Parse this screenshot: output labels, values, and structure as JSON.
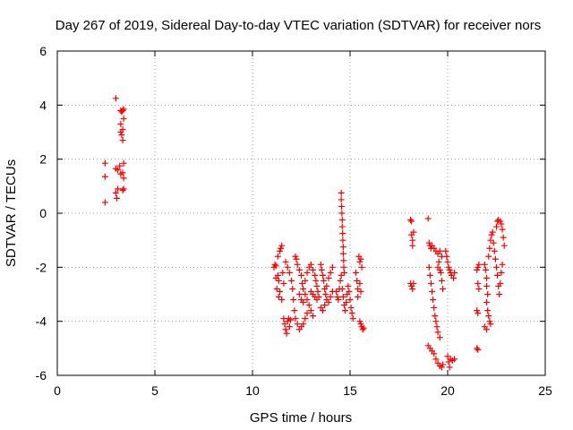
{
  "chart_data": {
    "type": "scatter",
    "title": "Day 267 of 2019, Sidereal Day-to-day VTEC variation (SDTVAR) for receiver nors",
    "xlabel": "GPS time / hours",
    "ylabel": "SDTVAR / TECUs",
    "xlim": [
      0,
      25
    ],
    "ylim": [
      -6,
      6
    ],
    "xticks": [
      "0",
      "5",
      "10",
      "15",
      "20",
      "25"
    ],
    "yticks": [
      "-6",
      "-4",
      "-2",
      "0",
      "2",
      "4",
      "6"
    ],
    "grid": true,
    "marker": "plus",
    "color": "#ff0000",
    "series": [
      {
        "name": "SDTVAR",
        "points": [
          [
            2.45,
            1.85
          ],
          [
            2.45,
            1.35
          ],
          [
            2.45,
            0.4
          ],
          [
            3.0,
            4.25
          ],
          [
            3.0,
            1.65
          ],
          [
            3.0,
            0.75
          ],
          [
            3.05,
            0.55
          ],
          [
            3.1,
            0.9
          ],
          [
            3.1,
            1.6
          ],
          [
            3.2,
            1.75
          ],
          [
            3.25,
            3.8
          ],
          [
            3.25,
            3.3
          ],
          [
            3.25,
            3.0
          ],
          [
            3.25,
            1.45
          ],
          [
            3.3,
            3.75
          ],
          [
            3.3,
            2.9
          ],
          [
            3.35,
            3.8
          ],
          [
            3.35,
            3.1
          ],
          [
            3.35,
            2.7
          ],
          [
            3.35,
            1.5
          ],
          [
            3.35,
            0.85
          ],
          [
            3.4,
            3.85
          ],
          [
            3.4,
            3.5
          ],
          [
            3.4,
            1.85
          ],
          [
            3.4,
            1.3
          ],
          [
            3.4,
            0.9
          ],
          [
            11.1,
            -2.0
          ],
          [
            11.15,
            -1.9
          ],
          [
            11.2,
            -2.4
          ],
          [
            11.2,
            -1.95
          ],
          [
            11.25,
            -2.8
          ],
          [
            11.3,
            -2.3
          ],
          [
            11.3,
            -1.6
          ],
          [
            11.35,
            -3.1
          ],
          [
            11.35,
            -2.5
          ],
          [
            11.4,
            -1.4
          ],
          [
            11.4,
            -2.9
          ],
          [
            11.45,
            -1.3
          ],
          [
            11.5,
            -1.2
          ],
          [
            11.5,
            -3.2
          ],
          [
            11.55,
            -2.2
          ],
          [
            11.6,
            -2.6
          ],
          [
            11.6,
            -3.9
          ],
          [
            11.65,
            -4.1
          ],
          [
            11.7,
            -4.3
          ],
          [
            11.75,
            -4.45
          ],
          [
            11.8,
            -4.0
          ],
          [
            11.85,
            -3.9
          ],
          [
            11.9,
            -4.2
          ],
          [
            11.95,
            -3.95
          ],
          [
            11.7,
            -1.8
          ],
          [
            11.8,
            -2.0
          ],
          [
            11.9,
            -2.2
          ],
          [
            12.0,
            -2.5
          ],
          [
            12.05,
            -2.8
          ],
          [
            12.1,
            -3.2
          ],
          [
            12.15,
            -3.6
          ],
          [
            12.2,
            -3.9
          ],
          [
            12.3,
            -4.1
          ],
          [
            12.4,
            -4.3
          ],
          [
            12.5,
            -4.2
          ],
          [
            12.6,
            -4.1
          ],
          [
            12.7,
            -3.9
          ],
          [
            12.8,
            -3.7
          ],
          [
            12.2,
            -1.6
          ],
          [
            12.25,
            -1.7
          ],
          [
            12.3,
            -1.9
          ],
          [
            12.4,
            -2.1
          ],
          [
            12.5,
            -2.3
          ],
          [
            12.55,
            -2.6
          ],
          [
            12.6,
            -2.8
          ],
          [
            12.7,
            -3.0
          ],
          [
            12.8,
            -3.2
          ],
          [
            12.9,
            -3.4
          ],
          [
            13.0,
            -3.6
          ],
          [
            13.1,
            -3.8
          ],
          [
            12.4,
            -3.0
          ],
          [
            12.5,
            -3.2
          ],
          [
            12.6,
            -3.3
          ],
          [
            12.7,
            -2.5
          ],
          [
            12.8,
            -2.2
          ],
          [
            12.9,
            -2.0
          ],
          [
            13.0,
            -1.9
          ],
          [
            13.1,
            -2.1
          ],
          [
            13.2,
            -2.3
          ],
          [
            13.25,
            -2.5
          ],
          [
            13.3,
            -2.7
          ],
          [
            13.35,
            -2.9
          ],
          [
            13.4,
            -3.1
          ],
          [
            13.0,
            -2.9
          ],
          [
            13.1,
            -3.0
          ],
          [
            13.2,
            -3.1
          ],
          [
            13.3,
            -3.2
          ],
          [
            13.5,
            -1.9
          ],
          [
            13.55,
            -2.1
          ],
          [
            13.6,
            -2.3
          ],
          [
            13.65,
            -2.5
          ],
          [
            13.7,
            -2.8
          ],
          [
            13.75,
            -3.0
          ],
          [
            13.8,
            -3.2
          ],
          [
            13.9,
            -3.3
          ],
          [
            14.0,
            -3.1
          ],
          [
            14.1,
            -2.9
          ],
          [
            13.5,
            -3.5
          ],
          [
            13.6,
            -3.6
          ],
          [
            13.7,
            -3.4
          ],
          [
            13.8,
            -2.7
          ],
          [
            13.9,
            -2.4
          ],
          [
            14.0,
            -2.2
          ],
          [
            14.1,
            -2.0
          ],
          [
            14.3,
            -2.9
          ],
          [
            14.35,
            -3.1
          ],
          [
            14.4,
            -3.2
          ],
          [
            14.45,
            -2.8
          ],
          [
            14.5,
            -2.5
          ],
          [
            14.55,
            -2.3
          ],
          [
            14.6,
            -2.8
          ],
          [
            14.65,
            -3.1
          ],
          [
            14.7,
            -3.4
          ],
          [
            14.75,
            -3.6
          ],
          [
            14.8,
            -3.3
          ],
          [
            14.85,
            -3.0
          ],
          [
            14.9,
            -2.7
          ],
          [
            14.95,
            -2.9
          ],
          [
            15.0,
            -3.2
          ],
          [
            15.05,
            -3.5
          ],
          [
            15.1,
            -3.7
          ],
          [
            15.15,
            -3.9
          ],
          [
            14.55,
            0.75
          ],
          [
            14.55,
            0.5
          ],
          [
            14.57,
            0.25
          ],
          [
            14.58,
            0.0
          ],
          [
            14.6,
            -0.25
          ],
          [
            14.6,
            -0.5
          ],
          [
            14.62,
            -0.75
          ],
          [
            14.63,
            -1.0
          ],
          [
            14.65,
            -1.25
          ],
          [
            14.65,
            -1.5
          ],
          [
            14.67,
            -1.75
          ],
          [
            14.68,
            -2.0
          ],
          [
            14.7,
            -2.2
          ],
          [
            15.3,
            -2.2
          ],
          [
            15.35,
            -2.5
          ],
          [
            15.4,
            -2.8
          ],
          [
            15.4,
            -3.1
          ],
          [
            15.45,
            -1.6
          ],
          [
            15.5,
            -1.8
          ],
          [
            15.5,
            -2.6
          ],
          [
            15.55,
            -2.9
          ],
          [
            15.55,
            -1.7
          ],
          [
            15.6,
            -2.0
          ],
          [
            15.5,
            -4.0
          ],
          [
            15.55,
            -4.1
          ],
          [
            15.6,
            -4.2
          ],
          [
            15.65,
            -4.3
          ],
          [
            15.7,
            -4.25
          ],
          [
            18.1,
            -0.25
          ],
          [
            18.15,
            -0.3
          ],
          [
            18.15,
            -0.8
          ],
          [
            18.2,
            -1.0
          ],
          [
            18.2,
            -1.2
          ],
          [
            18.25,
            -0.7
          ],
          [
            18.1,
            -2.6
          ],
          [
            18.15,
            -2.7
          ],
          [
            18.2,
            -2.8
          ],
          [
            18.25,
            -2.6
          ],
          [
            19.0,
            -0.2
          ],
          [
            19.05,
            -1.1
          ],
          [
            19.1,
            -1.2
          ],
          [
            19.15,
            -1.3
          ],
          [
            19.2,
            -1.2
          ],
          [
            19.3,
            -1.3
          ],
          [
            19.4,
            -1.4
          ],
          [
            19.5,
            -1.5
          ],
          [
            19.6,
            -1.4
          ],
          [
            19.7,
            -1.6
          ],
          [
            19.05,
            -2.0
          ],
          [
            19.1,
            -2.3
          ],
          [
            19.15,
            -2.6
          ],
          [
            19.2,
            -2.9
          ],
          [
            19.25,
            -3.2
          ],
          [
            19.3,
            -3.5
          ],
          [
            19.35,
            -3.8
          ],
          [
            19.4,
            -4.0
          ],
          [
            19.45,
            -4.2
          ],
          [
            19.5,
            -4.4
          ],
          [
            19.6,
            -4.6
          ],
          [
            19.65,
            -2.2
          ],
          [
            19.7,
            -2.5
          ],
          [
            19.75,
            -2.8
          ],
          [
            19.5,
            -2.0
          ],
          [
            19.55,
            -1.8
          ],
          [
            19.6,
            -2.1
          ],
          [
            19.0,
            -4.9
          ],
          [
            19.1,
            -5.0
          ],
          [
            19.2,
            -5.1
          ],
          [
            19.3,
            -5.2
          ],
          [
            19.4,
            -5.4
          ],
          [
            19.5,
            -5.55
          ],
          [
            19.6,
            -5.65
          ],
          [
            19.7,
            -5.7
          ],
          [
            19.75,
            -5.6
          ],
          [
            20.0,
            -5.3
          ],
          [
            20.05,
            -5.5
          ],
          [
            20.1,
            -5.7
          ],
          [
            20.15,
            -5.4
          ],
          [
            20.25,
            -5.45
          ],
          [
            20.35,
            -5.4
          ],
          [
            19.9,
            -1.4
          ],
          [
            19.95,
            -1.6
          ],
          [
            20.0,
            -1.8
          ],
          [
            20.05,
            -2.0
          ],
          [
            20.1,
            -2.1
          ],
          [
            20.15,
            -2.2
          ],
          [
            20.2,
            -2.3
          ],
          [
            20.3,
            -2.4
          ],
          [
            20.35,
            -2.2
          ],
          [
            21.5,
            -2.1
          ],
          [
            21.55,
            -2.0
          ],
          [
            21.6,
            -1.9
          ],
          [
            21.55,
            -2.6
          ],
          [
            21.6,
            -2.8
          ],
          [
            21.5,
            -3.6
          ],
          [
            21.55,
            -3.7
          ],
          [
            21.5,
            -5.0
          ],
          [
            21.55,
            -5.05
          ],
          [
            21.9,
            -1.9
          ],
          [
            21.95,
            -2.1
          ],
          [
            22.0,
            -2.4
          ],
          [
            22.0,
            -2.7
          ],
          [
            22.05,
            -3.0
          ],
          [
            22.1,
            -1.6
          ],
          [
            22.15,
            -1.3
          ],
          [
            22.2,
            -1.0
          ],
          [
            22.25,
            -0.8
          ],
          [
            22.3,
            -0.7
          ],
          [
            22.35,
            -1.1
          ],
          [
            22.4,
            -1.4
          ],
          [
            22.45,
            -1.7
          ],
          [
            22.5,
            -2.0
          ],
          [
            22.55,
            -2.3
          ],
          [
            22.6,
            -2.7
          ],
          [
            22.65,
            -3.0
          ],
          [
            22.7,
            -2.6
          ],
          [
            22.75,
            -2.2
          ],
          [
            22.8,
            -1.9
          ],
          [
            22.5,
            -0.5
          ],
          [
            22.55,
            -0.3
          ],
          [
            22.6,
            -0.25
          ],
          [
            22.7,
            -0.3
          ],
          [
            22.75,
            -0.4
          ],
          [
            22.8,
            -0.6
          ],
          [
            22.85,
            -0.9
          ],
          [
            22.9,
            -1.2
          ],
          [
            22.0,
            -3.3
          ],
          [
            22.05,
            -3.6
          ],
          [
            22.1,
            -3.8
          ],
          [
            22.15,
            -4.0
          ],
          [
            22.2,
            -4.1
          ],
          [
            21.9,
            -4.2
          ],
          [
            22.0,
            -4.3
          ]
        ]
      }
    ]
  }
}
